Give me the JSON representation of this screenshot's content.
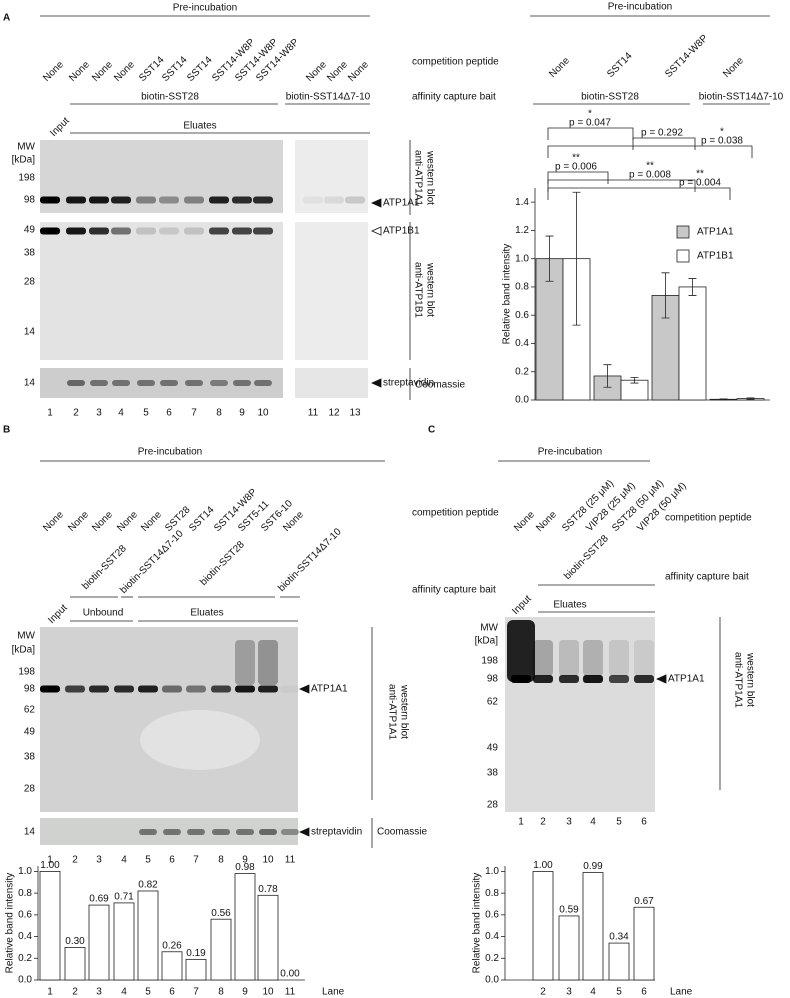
{
  "panel_a": {
    "label": "A",
    "preincubation": "Pre-incubation",
    "peptides": [
      "None",
      "None",
      "None",
      "None",
      "SST14",
      "SST14",
      "SST14",
      "SST14-W8P",
      "SST14-W8P",
      "SST14-W8P",
      "None",
      "None",
      "None"
    ],
    "competition_peptide": "competition peptide",
    "baits": [
      "biotin-SST28",
      "biotin-SST14Δ7-10"
    ],
    "bait_label": "affinity capture bait",
    "input": "Input",
    "eluates": "Eluates",
    "mw": [
      "MW",
      "[kDa]"
    ],
    "markers": [
      198,
      98,
      49,
      38,
      28,
      14,
      14
    ],
    "proteins": [
      "ATP1A1",
      "ATP1B1"
    ],
    "stain_band": "streptavidin",
    "blot_labels": [
      [
        "anti-ATP1A1",
        "western blot"
      ],
      [
        "anti-ATP1B1",
        "western blot"
      ]
    ],
    "stain": "Coomassie",
    "lanes": [
      1,
      2,
      3,
      4,
      5,
      6,
      7,
      8,
      9,
      10,
      11,
      12,
      13
    ]
  },
  "panel_b": {
    "label": "B",
    "preincubation": "Pre-incubation",
    "peptides": [
      "None",
      "None",
      "None",
      "None",
      "None",
      "SST28",
      "SST14",
      "SST14-W8P",
      "SST5-11",
      "SST6-10",
      "None"
    ],
    "competition_peptide": "competition peptide",
    "baits": [
      "biotin-SST28",
      "biotin-SST14Δ7-10",
      "biotin-SST28",
      "biotin-SST14Δ7-10"
    ],
    "bait_label": "affinity capture bait",
    "input": "Input",
    "unbound": "Unbound",
    "eluates": "Eluates",
    "mw": [
      "MW",
      "[kDa]"
    ],
    "markers": [
      198,
      98,
      62,
      49,
      38,
      28,
      14
    ],
    "protein": "ATP1A1",
    "stain_band": "streptavidin",
    "blot_label": [
      "anti-ATP1A1",
      "western blot"
    ],
    "stain": "Coomassie",
    "lanes": [
      1,
      2,
      3,
      4,
      5,
      6,
      7,
      8,
      9,
      10,
      11
    ]
  },
  "panel_c": {
    "label": "C",
    "preincubation": "Pre-incubation",
    "peptides": [
      "None",
      "None",
      "SST28 (25 μM)",
      "VIP28 (25 μM)",
      "SST28 (50 μM)",
      "VIP28 (50 μM)"
    ],
    "competition_peptide": "competition peptide",
    "bait": "biotin-SST28",
    "bait_label": "affinity capture bait",
    "input": "Input",
    "eluates": "Eluates",
    "mw": [
      "MW",
      "[kDa]"
    ],
    "markers": [
      198,
      98,
      62,
      49,
      38,
      28
    ],
    "protein": "ATP1A1",
    "blot_label": [
      "anti-ATP1A1",
      "western blot"
    ],
    "lanes": [
      1,
      2,
      3,
      4,
      5,
      6
    ]
  },
  "chart_data": [
    {
      "type": "bar",
      "preincubation": "Pre-incubation",
      "categories": [
        "None",
        "SST14",
        "SST14-W8P",
        "None"
      ],
      "baits": [
        "biotin-SST28",
        "biotin-SST14Δ7-10"
      ],
      "ylabel": "Relative band intensity",
      "ylim": [
        0,
        1.5
      ],
      "yticks": [
        {
          "value": 0,
          "label": "0.0"
        },
        0.2,
        0.4,
        0.6,
        0.8,
        {
          "value": 1,
          "label": "1.0"
        },
        1.2,
        1.4
      ],
      "legend": "upper right",
      "series": [
        {
          "name": "ATP1A1",
          "color": "#c8c8c8",
          "values": [
            1.0,
            0.17,
            0.74,
            0.005
          ],
          "errors": [
            0.16,
            0.08,
            0.16,
            0.003
          ]
        },
        {
          "name": "ATP1B1",
          "color": "#ffffff",
          "values": [
            1.0,
            0.14,
            0.8,
            0.01
          ],
          "errors": [
            0.47,
            0.02,
            0.06,
            0.005
          ]
        }
      ],
      "annotations": [
        {
          "stars": "*",
          "text": "p = 0.047"
        },
        {
          "text": "p = 0.292"
        },
        {
          "stars": "*",
          "text": "p = 0.038"
        },
        {
          "stars": "**",
          "text": "p = 0.006"
        },
        {
          "stars": "**",
          "text": "p = 0.008"
        },
        {
          "stars": "**",
          "text": "p = 0.004"
        }
      ]
    },
    {
      "type": "bar",
      "categories": [
        "1",
        "2",
        "3",
        "4",
        "5",
        "6",
        "7",
        "8",
        "9",
        "10",
        "11"
      ],
      "values": [
        1.0,
        0.3,
        0.69,
        0.71,
        0.82,
        0.26,
        0.19,
        0.56,
        0.98,
        0.78,
        0.0
      ],
      "value_labels": [
        "1.00",
        "0.30",
        "0.69",
        "0.71",
        "0.82",
        "0.26",
        "0.19",
        "0.56",
        "0.98",
        "0.78",
        "0.00"
      ],
      "color": "#ffffff",
      "ylabel": "Relative band intensity",
      "xlabel": "Lane",
      "ylim": [
        0,
        1.05
      ],
      "yticks": [
        {
          "value": 0,
          "label": "0.0"
        },
        0.2,
        0.4,
        0.6,
        0.8,
        {
          "value": 1,
          "label": "1.0"
        }
      ]
    },
    {
      "type": "bar",
      "categories": [
        "2",
        "3",
        "4",
        "5",
        "6"
      ],
      "values": [
        1.0,
        0.59,
        0.99,
        0.34,
        0.67
      ],
      "value_labels": [
        "1.00",
        "0.59",
        "0.99",
        "0.34",
        "0.67"
      ],
      "color": "#ffffff",
      "ylabel": "Relative band intensity",
      "xlabel": "Lane",
      "ylim": [
        0,
        1.05
      ],
      "yticks": [
        {
          "value": 0,
          "label": "0.0"
        },
        0.2,
        0.4,
        0.6,
        0.8,
        {
          "value": 1,
          "label": "1.0"
        }
      ]
    }
  ]
}
